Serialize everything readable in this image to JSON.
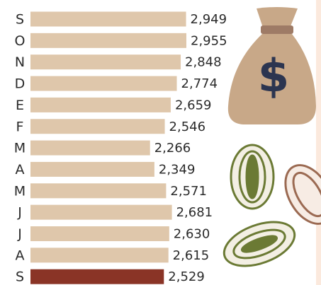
{
  "chart_data": {
    "type": "hbar",
    "categories": [
      "S",
      "O",
      "N",
      "D",
      "E",
      "F",
      "M",
      "A",
      "M",
      "J",
      "J",
      "A",
      "S"
    ],
    "values": [
      2949,
      2955,
      2848,
      2774,
      2659,
      2546,
      2266,
      2349,
      2571,
      2681,
      2630,
      2615,
      2529
    ],
    "value_labels": [
      "2,949",
      "2,955",
      "2,848",
      "2,774",
      "2,659",
      "2,546",
      "2,266",
      "2,349",
      "2,571",
      "2,681",
      "2,630",
      "2,615",
      "2,529"
    ],
    "colors": [
      "#dfc7ab",
      "#dfc7ab",
      "#dfc7ab",
      "#dfc7ab",
      "#dfc7ab",
      "#dfc7ab",
      "#dfc7ab",
      "#dfc7ab",
      "#dfc7ab",
      "#dfc7ab",
      "#dfc7ab",
      "#dfc7ab",
      "#8a3426"
    ],
    "icon_text": "$"
  }
}
